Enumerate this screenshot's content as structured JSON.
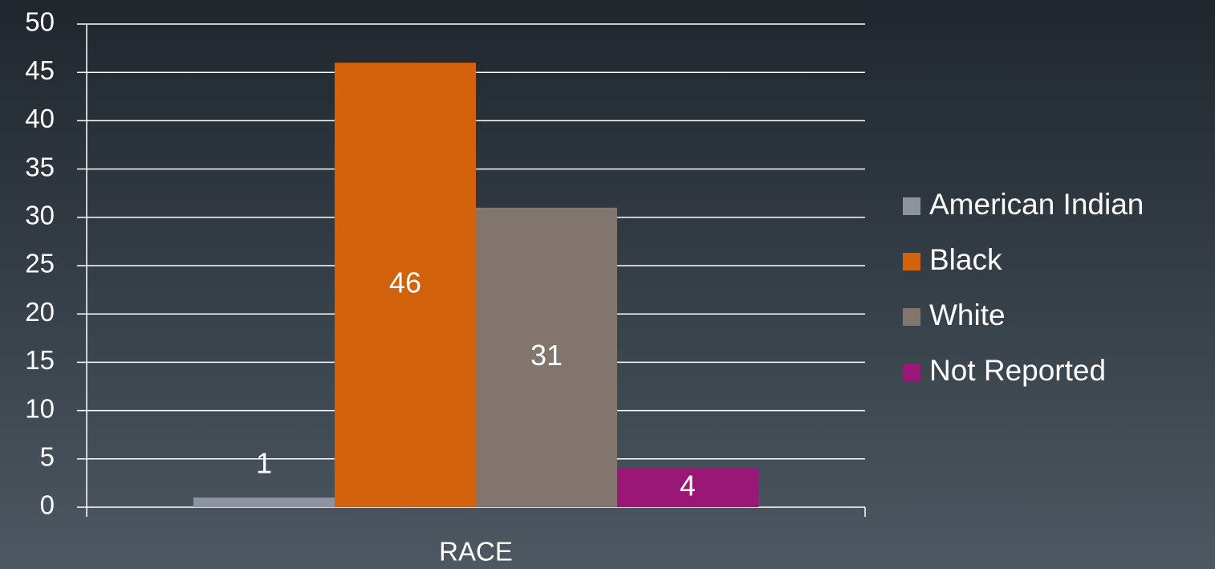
{
  "chart_data": {
    "type": "bar",
    "categories": [
      "RACE"
    ],
    "series": [
      {
        "name": "American Indian",
        "color": "#8a939f",
        "values": [
          1
        ]
      },
      {
        "name": "Black",
        "color": "#d2620b",
        "values": [
          46
        ]
      },
      {
        "name": "White",
        "color": "#81756e",
        "values": [
          31
        ]
      },
      {
        "name": "Not Reported",
        "color": "#9a1677",
        "values": [
          4
        ]
      }
    ],
    "ylim": [
      0,
      50
    ],
    "yticks": [
      0,
      5,
      10,
      15,
      20,
      25,
      30,
      35,
      40,
      45,
      50
    ],
    "grid": true,
    "legend": "right"
  }
}
